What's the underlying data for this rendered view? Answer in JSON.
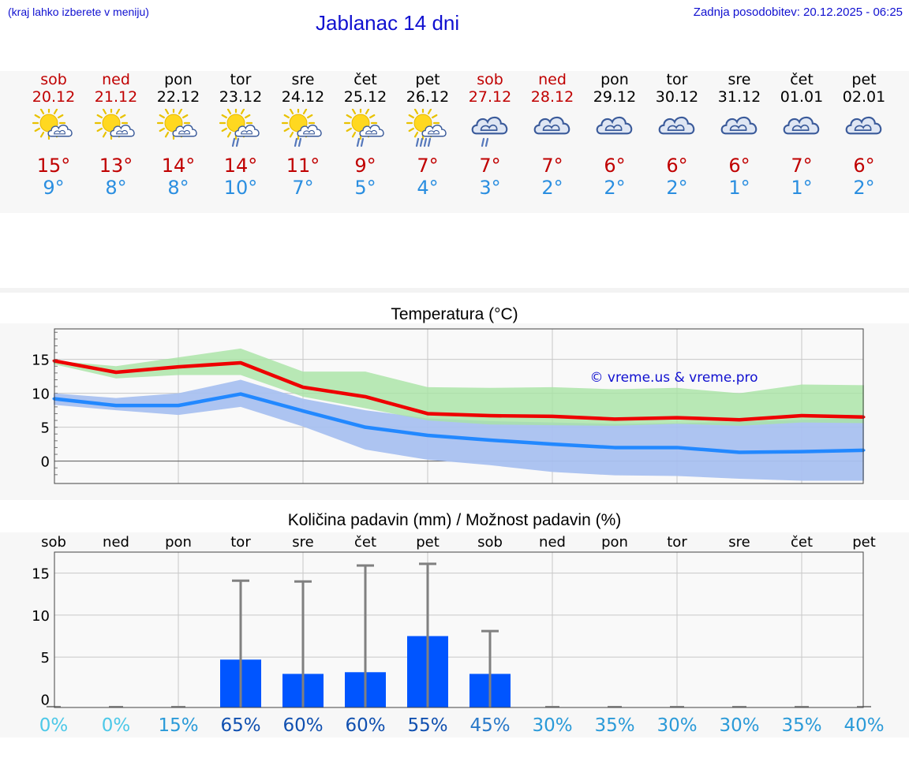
{
  "header": {
    "hint": "(kraj lahko izberete v meniju)",
    "title": "Jablanac 14 dni",
    "updated": "Zadnja posodobitev: 20.12.2025 - 06:25"
  },
  "days": [
    {
      "name": "sob",
      "date": "20.12",
      "weekend": true,
      "icon": "sun-cloud-icon",
      "tmax": "15°",
      "tmin": "9°"
    },
    {
      "name": "ned",
      "date": "21.12",
      "weekend": true,
      "icon": "sun-cloud-icon",
      "tmax": "13°",
      "tmin": "8°"
    },
    {
      "name": "pon",
      "date": "22.12",
      "weekend": false,
      "icon": "sun-cloud-icon",
      "tmax": "14°",
      "tmin": "8°"
    },
    {
      "name": "tor",
      "date": "23.12",
      "weekend": false,
      "icon": "sun-cloud-rain-icon",
      "tmax": "14°",
      "tmin": "10°"
    },
    {
      "name": "sre",
      "date": "24.12",
      "weekend": false,
      "icon": "sun-cloud-rain-icon",
      "tmax": "11°",
      "tmin": "7°"
    },
    {
      "name": "čet",
      "date": "25.12",
      "weekend": false,
      "icon": "sun-cloud-rain-icon",
      "tmax": "9°",
      "tmin": "5°"
    },
    {
      "name": "pet",
      "date": "26.12",
      "weekend": false,
      "icon": "sun-cloud-heavy-rain-icon",
      "tmax": "7°",
      "tmin": "4°"
    },
    {
      "name": "sob",
      "date": "27.12",
      "weekend": true,
      "icon": "cloud-rain-icon",
      "tmax": "7°",
      "tmin": "3°"
    },
    {
      "name": "ned",
      "date": "28.12",
      "weekend": true,
      "icon": "cloud-icon",
      "tmax": "7°",
      "tmin": "2°"
    },
    {
      "name": "pon",
      "date": "29.12",
      "weekend": false,
      "icon": "cloud-icon",
      "tmax": "6°",
      "tmin": "2°"
    },
    {
      "name": "tor",
      "date": "30.12",
      "weekend": false,
      "icon": "cloud-icon",
      "tmax": "6°",
      "tmin": "2°"
    },
    {
      "name": "sre",
      "date": "31.12",
      "weekend": false,
      "icon": "cloud-icon",
      "tmax": "6°",
      "tmin": "1°"
    },
    {
      "name": "čet",
      "date": "01.01",
      "weekend": false,
      "icon": "cloud-icon",
      "tmax": "7°",
      "tmin": "1°"
    },
    {
      "name": "pet",
      "date": "02.01",
      "weekend": false,
      "icon": "cloud-icon",
      "tmax": "6°",
      "tmin": "2°"
    }
  ],
  "colors": {
    "title": "#1010d0",
    "weekend": "#c00000",
    "tmin": "#2a8ee0",
    "max_line": "#ee0000",
    "min_line": "#2288ff",
    "max_band": "#a7e3a4",
    "min_band": "#a9c1f0",
    "overlap_band": "#80c3a6",
    "bar": "#0055ff",
    "whisker": "#808080"
  },
  "chart_data": [
    {
      "type": "line",
      "title": "Temperatura (°C)",
      "watermark": "© vreme.us & vreme.pro",
      "x": [
        0,
        1,
        2,
        3,
        4,
        5,
        6,
        7,
        8,
        9,
        10,
        11,
        12,
        13
      ],
      "ylim": [
        -3.3,
        19.5
      ],
      "yticks": [
        0,
        5,
        10,
        15
      ],
      "series": [
        {
          "name": "max",
          "values": [
            14.8,
            13.1,
            13.9,
            14.5,
            10.9,
            9.5,
            7.0,
            6.7,
            6.6,
            6.2,
            6.4,
            6.1,
            6.7,
            6.5
          ]
        },
        {
          "name": "min",
          "values": [
            9.2,
            8.2,
            8.2,
            9.9,
            7.4,
            5.0,
            3.8,
            3.1,
            2.5,
            2.0,
            2.0,
            1.3,
            1.4,
            1.6
          ]
        },
        {
          "name": "max_range_high",
          "values": [
            14.8,
            14.0,
            15.3,
            16.6,
            13.2,
            13.2,
            10.9,
            10.8,
            10.9,
            10.6,
            10.8,
            10.0,
            11.3,
            11.2
          ]
        },
        {
          "name": "max_range_low",
          "values": [
            14.3,
            12.2,
            12.7,
            12.7,
            9.5,
            7.8,
            6.0,
            5.4,
            5.3,
            5.2,
            5.5,
            5.2,
            5.7,
            5.6
          ]
        },
        {
          "name": "min_range_high",
          "values": [
            10.0,
            9.3,
            10.0,
            12.0,
            9.2,
            7.5,
            6.3,
            5.9,
            5.7,
            5.5,
            5.6,
            5.8,
            6.1,
            6.3
          ]
        },
        {
          "name": "min_range_low",
          "values": [
            8.3,
            7.5,
            6.8,
            8.0,
            5.1,
            1.7,
            0.2,
            -0.6,
            -1.6,
            -2.1,
            -2.2,
            -2.6,
            -2.9,
            -2.9
          ]
        }
      ]
    },
    {
      "type": "bar",
      "title": "Količina padavin (mm) / Možnost padavin (%)",
      "categories": [
        "sob",
        "ned",
        "pon",
        "tor",
        "sre",
        "čet",
        "pet",
        "sob",
        "ned",
        "pon",
        "tor",
        "sre",
        "čet",
        "pet"
      ],
      "values": [
        0,
        0,
        0,
        4.7,
        3.0,
        3.2,
        7.5,
        3.0,
        0,
        0,
        0,
        0,
        0,
        0
      ],
      "range_high": [
        0,
        0,
        0,
        14.1,
        14.0,
        15.9,
        16.1,
        8.1,
        0,
        0,
        0,
        0,
        0,
        0
      ],
      "ylim": [
        -1.0,
        17.5
      ],
      "yticks": [
        0,
        5,
        10,
        15
      ],
      "probability": [
        "0%",
        "0%",
        "15%",
        "65%",
        "60%",
        "60%",
        "55%",
        "45%",
        "30%",
        "35%",
        "30%",
        "30%",
        "35%",
        "40%"
      ],
      "probability_values": [
        0,
        0,
        15,
        65,
        60,
        60,
        55,
        45,
        30,
        35,
        30,
        30,
        35,
        40
      ]
    }
  ]
}
